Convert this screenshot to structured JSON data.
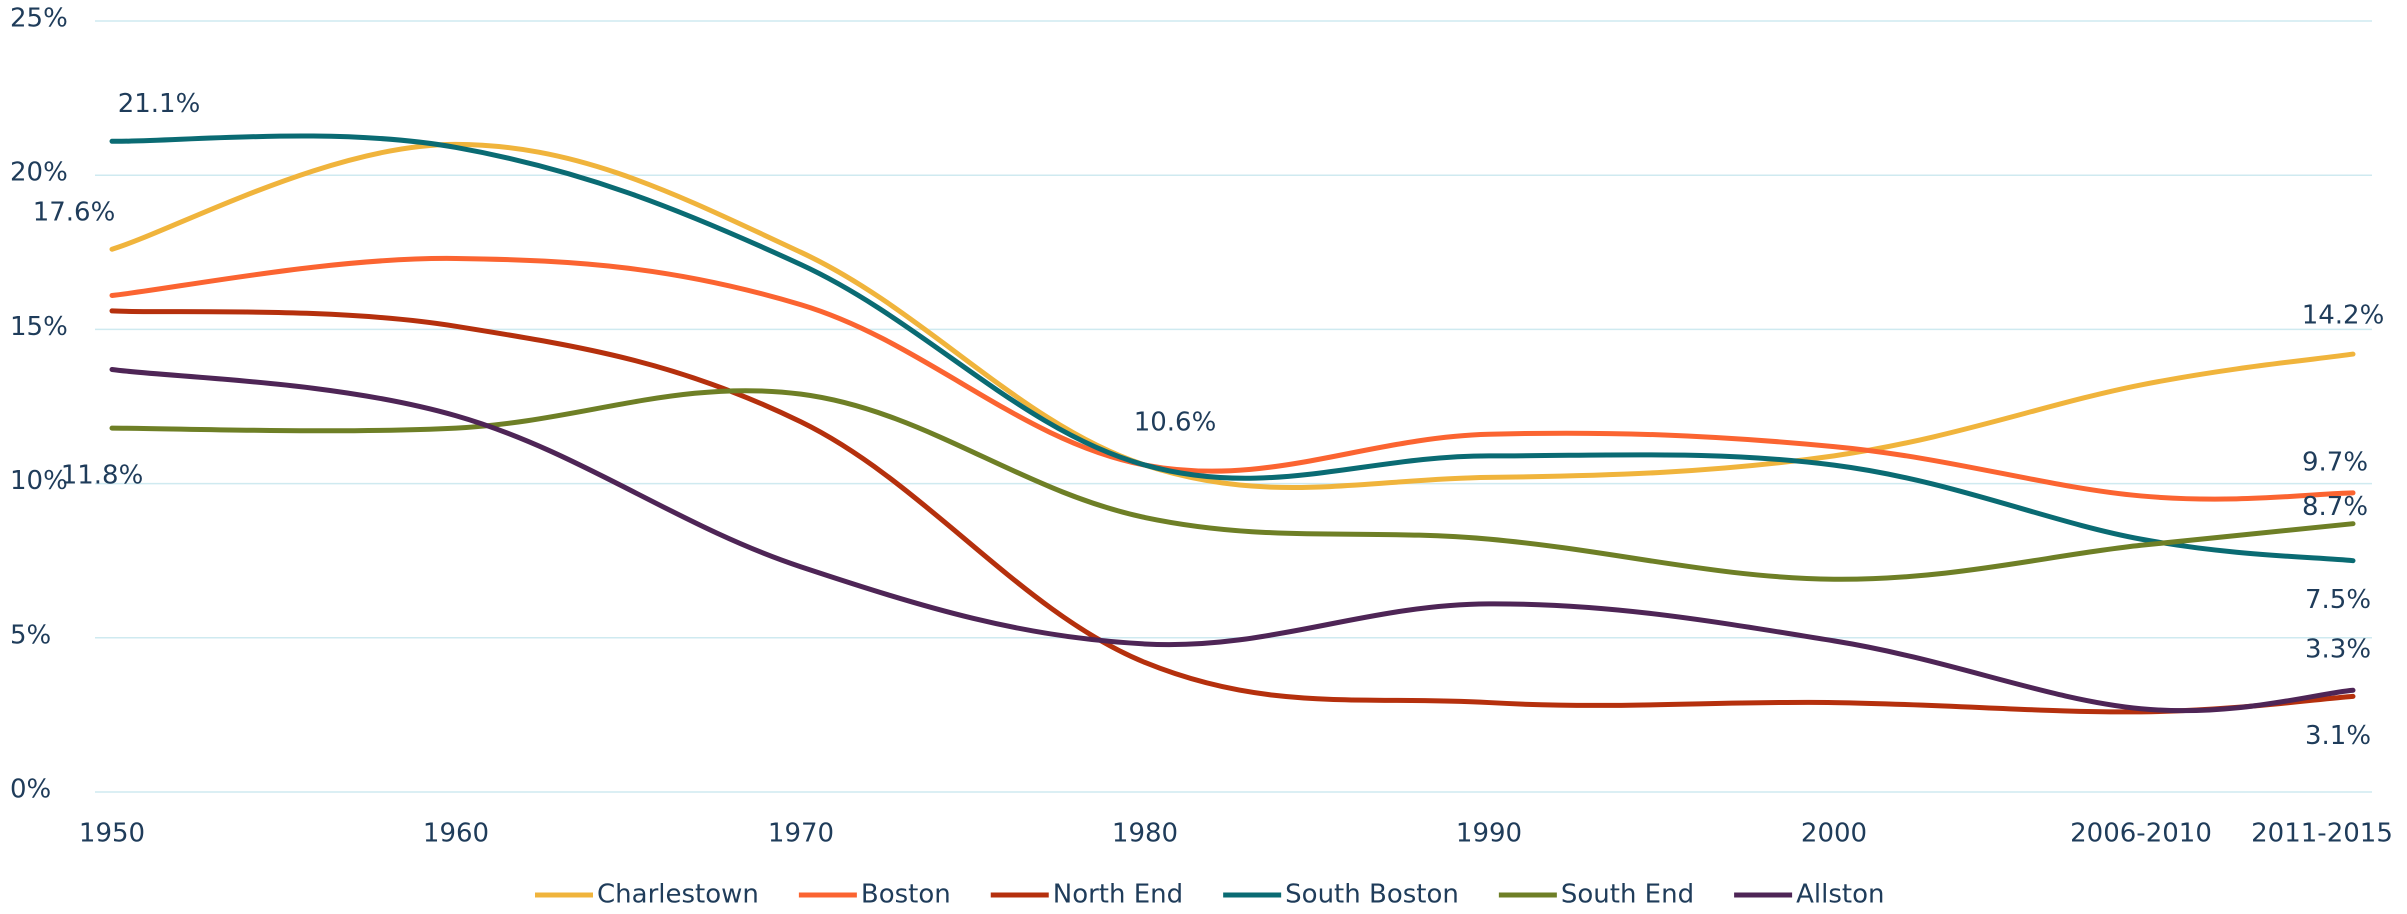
{
  "chart_data": {
    "type": "line",
    "categories": [
      "1950",
      "1960",
      "1970",
      "1980",
      "1990",
      "2000",
      "2006-2010",
      "2011-2015"
    ],
    "series": [
      {
        "name": "Charlestown",
        "color": "#f0b43c",
        "values": [
          17.6,
          21.0,
          17.5,
          10.6,
          10.2,
          10.9,
          13.2,
          14.2
        ],
        "value_labels": [
          "17.6%",
          null,
          null,
          null,
          null,
          null,
          null,
          "14.2%"
        ]
      },
      {
        "name": "Boston",
        "color": "#fb6431",
        "values": [
          16.1,
          17.3,
          15.8,
          10.6,
          11.6,
          11.2,
          9.6,
          9.7
        ],
        "value_labels": [
          null,
          null,
          null,
          null,
          null,
          null,
          null,
          "9.7%"
        ]
      },
      {
        "name": "North End",
        "color": "#b5300d",
        "values": [
          15.6,
          15.1,
          12.0,
          4.2,
          2.9,
          2.9,
          2.6,
          3.1
        ],
        "value_labels": [
          null,
          null,
          null,
          null,
          null,
          null,
          null,
          "3.1%"
        ]
      },
      {
        "name": "South Boston",
        "color": "#0a6b73",
        "values": [
          21.1,
          20.9,
          17.1,
          10.6,
          10.9,
          10.6,
          8.2,
          7.5
        ],
        "value_labels": [
          "21.1%",
          null,
          null,
          "10.6%",
          null,
          null,
          null,
          "7.5%"
        ]
      },
      {
        "name": "South End",
        "color": "#6e7f26",
        "values": [
          11.8,
          11.8,
          12.9,
          8.9,
          8.2,
          6.9,
          8.0,
          8.7
        ],
        "value_labels": [
          "11.8%",
          null,
          null,
          null,
          null,
          null,
          null,
          "8.7%"
        ]
      },
      {
        "name": "Allston",
        "color": "#4e2556",
        "values": [
          13.7,
          12.2,
          7.3,
          4.8,
          6.1,
          4.9,
          2.7,
          3.3
        ],
        "value_labels": [
          null,
          null,
          null,
          null,
          null,
          null,
          null,
          "3.3%"
        ]
      }
    ],
    "ylim": [
      0,
      25
    ],
    "yticks": [
      {
        "value": 0,
        "label": "0%"
      },
      {
        "value": 5,
        "label": "5%"
      },
      {
        "value": 10,
        "label": "10%"
      },
      {
        "value": 15,
        "label": "15%"
      },
      {
        "value": 20,
        "label": "20%"
      },
      {
        "value": 25,
        "label": "25%"
      }
    ],
    "grid": true,
    "legend": "bottom"
  }
}
